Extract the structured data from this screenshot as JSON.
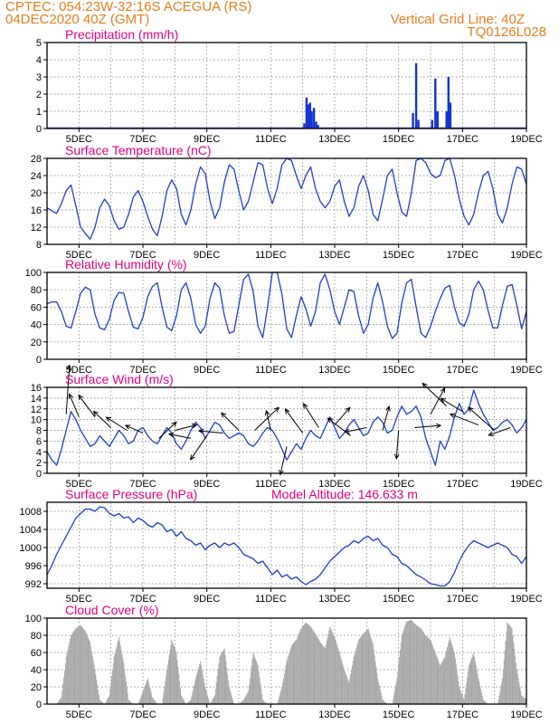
{
  "header": {
    "line1": "CPTEC:  054:23W-32:16S  ACEGUA (RS)",
    "line2": "04DEC2020 40Z (GMT)",
    "grid_note": "Vertical Grid Line: 40Z",
    "code": "TQ0126L028"
  },
  "colors": {
    "header": "#e87d1e",
    "title": "#e6007e",
    "line": "#1f3fd1",
    "bars": "#1432d6",
    "cloud": "#a6a6a6"
  },
  "x_axis": {
    "start_day": 4,
    "end_day": 19,
    "tick_days": [
      5,
      7,
      9,
      11,
      13,
      15,
      17,
      19
    ],
    "tick_labels": [
      "5DEC",
      "7DEC",
      "9DEC",
      "11DEC",
      "13DEC",
      "15DEC",
      "17DEC",
      "19DEC"
    ]
  },
  "chart_data": [
    {
      "name": "precipitation",
      "type": "bar",
      "title": "Precipitation (mm/h)",
      "ylim": [
        0,
        5
      ],
      "yticks": [
        0,
        1,
        2,
        3,
        4,
        5
      ],
      "grid": true,
      "x": [
        12.05,
        12.12,
        12.17,
        12.23,
        12.28,
        12.35,
        12.42,
        12.48,
        15.45,
        15.55,
        15.62,
        16.05,
        16.15,
        16.22,
        16.5,
        16.56,
        16.62
      ],
      "values": [
        0.3,
        1.8,
        1.4,
        1.5,
        1.0,
        1.2,
        0.4,
        0.2,
        0.9,
        3.8,
        0.5,
        0.5,
        2.9,
        1.0,
        1.0,
        3.0,
        1.5
      ]
    },
    {
      "name": "temperature",
      "type": "line",
      "title": "Surface Temperature (nC)",
      "ylim": [
        8,
        28
      ],
      "yticks": [
        8,
        12,
        16,
        20,
        24,
        28
      ],
      "grid": true,
      "x": [
        4.0,
        4.15,
        4.3,
        4.45,
        4.6,
        4.75,
        4.9,
        5.05,
        5.2,
        5.35,
        5.5,
        5.65,
        5.8,
        5.95,
        6.1,
        6.25,
        6.4,
        6.55,
        6.7,
        6.85,
        7.0,
        7.15,
        7.3,
        7.45,
        7.6,
        7.75,
        7.9,
        8.05,
        8.2,
        8.35,
        8.5,
        8.65,
        8.8,
        8.95,
        9.1,
        9.25,
        9.4,
        9.55,
        9.7,
        9.85,
        10.0,
        10.15,
        10.3,
        10.45,
        10.6,
        10.75,
        10.9,
        11.05,
        11.2,
        11.35,
        11.5,
        11.65,
        11.8,
        11.95,
        12.1,
        12.25,
        12.4,
        12.55,
        12.7,
        12.85,
        13.0,
        13.15,
        13.3,
        13.45,
        13.6,
        13.75,
        13.9,
        14.05,
        14.2,
        14.35,
        14.5,
        14.65,
        14.8,
        14.95,
        15.1,
        15.25,
        15.4,
        15.55,
        15.7,
        15.85,
        16.0,
        16.15,
        16.3,
        16.45,
        16.6,
        16.75,
        16.9,
        17.05,
        17.2,
        17.35,
        17.5,
        17.65,
        17.8,
        17.95,
        18.1,
        18.25,
        18.4,
        18.55,
        18.7,
        18.85,
        19.0
      ],
      "values": [
        16.5,
        15.8,
        15.2,
        17.5,
        20.5,
        21.8,
        17.0,
        12.0,
        10.5,
        9.2,
        12.0,
        16.5,
        18.5,
        17.0,
        13.5,
        11.5,
        12.0,
        15.0,
        19.0,
        20.5,
        18.0,
        14.5,
        11.5,
        10.0,
        14.5,
        20.5,
        23.0,
        21.0,
        15.0,
        12.5,
        16.0,
        22.0,
        26.0,
        24.5,
        18.0,
        14.0,
        16.5,
        22.5,
        26.5,
        25.5,
        20.5,
        16.0,
        18.0,
        22.5,
        27.0,
        26.5,
        21.0,
        17.5,
        21.0,
        26.5,
        28.0,
        27.5,
        24.0,
        21.0,
        24.0,
        26.0,
        21.0,
        18.0,
        16.5,
        18.0,
        21.5,
        23.0,
        18.0,
        14.5,
        16.5,
        21.5,
        24.0,
        20.5,
        15.0,
        13.5,
        18.5,
        24.0,
        25.5,
        20.0,
        15.5,
        14.5,
        20.0,
        27.5,
        28.0,
        27.0,
        24.5,
        23.5,
        24.0,
        27.5,
        28.0,
        24.0,
        18.5,
        14.5,
        12.5,
        15.0,
        20.0,
        24.0,
        25.0,
        21.0,
        15.0,
        13.0,
        16.5,
        22.0,
        26.0,
        25.5,
        22.0
      ]
    },
    {
      "name": "humidity",
      "type": "line",
      "title": "Relative Humidity (%)",
      "ylim": [
        0,
        100
      ],
      "yticks": [
        0,
        20,
        40,
        60,
        80,
        100
      ],
      "grid": true,
      "x": [
        4.0,
        4.15,
        4.3,
        4.45,
        4.6,
        4.75,
        4.9,
        5.05,
        5.2,
        5.35,
        5.5,
        5.65,
        5.8,
        5.95,
        6.1,
        6.25,
        6.4,
        6.55,
        6.7,
        6.85,
        7.0,
        7.15,
        7.3,
        7.45,
        7.6,
        7.75,
        7.9,
        8.05,
        8.2,
        8.35,
        8.5,
        8.65,
        8.8,
        8.95,
        9.1,
        9.25,
        9.4,
        9.55,
        9.7,
        9.85,
        10.0,
        10.15,
        10.3,
        10.45,
        10.6,
        10.75,
        10.9,
        11.05,
        11.2,
        11.35,
        11.5,
        11.65,
        11.8,
        11.95,
        12.1,
        12.25,
        12.4,
        12.55,
        12.7,
        12.85,
        13.0,
        13.15,
        13.3,
        13.45,
        13.6,
        13.75,
        13.9,
        14.05,
        14.2,
        14.35,
        14.5,
        14.65,
        14.8,
        14.95,
        15.1,
        15.25,
        15.4,
        15.55,
        15.7,
        15.85,
        16.0,
        16.15,
        16.3,
        16.45,
        16.6,
        16.75,
        16.9,
        17.05,
        17.2,
        17.35,
        17.5,
        17.65,
        17.8,
        17.95,
        18.1,
        18.25,
        18.4,
        18.55,
        18.7,
        18.85,
        19.0
      ],
      "values": [
        64,
        66,
        66,
        55,
        38,
        36,
        55,
        76,
        83,
        80,
        52,
        36,
        34,
        46,
        68,
        77,
        76,
        55,
        37,
        35,
        48,
        72,
        84,
        88,
        60,
        37,
        33,
        50,
        80,
        88,
        70,
        40,
        30,
        38,
        70,
        88,
        82,
        50,
        30,
        32,
        62,
        92,
        98,
        78,
        38,
        25,
        60,
        100,
        100,
        75,
        35,
        25,
        50,
        72,
        58,
        38,
        55,
        88,
        98,
        80,
        55,
        40,
        60,
        80,
        78,
        50,
        30,
        40,
        70,
        88,
        66,
        38,
        24,
        30,
        65,
        88,
        92,
        60,
        30,
        25,
        38,
        55,
        70,
        82,
        85,
        60,
        42,
        38,
        52,
        80,
        90,
        80,
        56,
        36,
        36,
        62,
        84,
        86,
        62,
        35,
        55
      ]
    },
    {
      "name": "wind",
      "type": "line",
      "title": "Surface Wind (m/s)",
      "ylim": [
        0,
        16
      ],
      "yticks": [
        0,
        2,
        4,
        6,
        8,
        10,
        12,
        14,
        16
      ],
      "grid": true,
      "x": [
        4.0,
        4.15,
        4.3,
        4.45,
        4.6,
        4.75,
        4.9,
        5.05,
        5.2,
        5.35,
        5.5,
        5.65,
        5.8,
        5.95,
        6.1,
        6.25,
        6.4,
        6.55,
        6.7,
        6.85,
        7.0,
        7.15,
        7.3,
        7.45,
        7.6,
        7.75,
        7.9,
        8.05,
        8.2,
        8.35,
        8.5,
        8.65,
        8.8,
        8.95,
        9.1,
        9.25,
        9.4,
        9.55,
        9.7,
        9.85,
        10.0,
        10.15,
        10.3,
        10.45,
        10.6,
        10.75,
        10.9,
        11.05,
        11.2,
        11.35,
        11.5,
        11.65,
        11.8,
        11.95,
        12.1,
        12.25,
        12.4,
        12.55,
        12.7,
        12.85,
        13.0,
        13.15,
        13.3,
        13.45,
        13.6,
        13.75,
        13.9,
        14.05,
        14.2,
        14.35,
        14.5,
        14.65,
        14.8,
        14.95,
        15.1,
        15.25,
        15.4,
        15.55,
        15.7,
        15.85,
        16.0,
        16.15,
        16.3,
        16.45,
        16.6,
        16.75,
        16.9,
        17.05,
        17.2,
        17.35,
        17.5,
        17.65,
        17.8,
        17.95,
        18.1,
        18.25,
        18.4,
        18.55,
        18.7,
        18.85,
        19.0
      ],
      "values": [
        4.0,
        2.5,
        1.5,
        4.5,
        8.0,
        11.5,
        10.0,
        8.0,
        6.5,
        5.0,
        5.5,
        7.0,
        6.0,
        5.0,
        6.5,
        8.0,
        7.0,
        5.5,
        6.0,
        8.0,
        8.5,
        7.0,
        6.0,
        5.5,
        7.0,
        8.5,
        7.5,
        5.5,
        4.5,
        6.0,
        8.0,
        9.5,
        8.5,
        6.5,
        8.0,
        9.5,
        9.0,
        7.5,
        6.5,
        7.0,
        7.5,
        7.0,
        5.5,
        5.0,
        6.0,
        7.5,
        8.5,
        8.0,
        6.5,
        4.5,
        2.5,
        4.0,
        5.5,
        4.5,
        6.5,
        8.0,
        7.0,
        6.5,
        8.5,
        10.5,
        8.5,
        6.5,
        7.5,
        9.0,
        10.0,
        8.5,
        7.0,
        7.5,
        9.5,
        10.5,
        9.5,
        7.5,
        8.0,
        10.5,
        12.5,
        11.0,
        11.5,
        12.5,
        10.5,
        6.5,
        4.0,
        1.5,
        6.0,
        4.5,
        7.0,
        10.5,
        13.0,
        11.0,
        12.0,
        15.5,
        13.0,
        11.0,
        9.5,
        8.0,
        8.5,
        9.5,
        10.0,
        9.0,
        7.5,
        8.5,
        10.0
      ],
      "vectors": [
        {
          "x": 4.6,
          "y": 11.0,
          "u": 0.3,
          "v": 4.5
        },
        {
          "x": 5.0,
          "y": 10.5,
          "u": -0.9,
          "v": 2.1
        },
        {
          "x": 5.5,
          "y": 10.5,
          "u": -1.5,
          "v": 2.0
        },
        {
          "x": 6.0,
          "y": 8.5,
          "u": -1.6,
          "v": 1.5
        },
        {
          "x": 6.5,
          "y": 8.0,
          "u": -1.9,
          "v": 1.2
        },
        {
          "x": 7.0,
          "y": 7.5,
          "u": -1.6,
          "v": 0.7
        },
        {
          "x": 7.5,
          "y": 6.5,
          "u": 1.6,
          "v": 1.5
        },
        {
          "x": 8.0,
          "y": 8.0,
          "u": 2.0,
          "v": 0.5
        },
        {
          "x": 8.5,
          "y": 6.5,
          "u": -2.0,
          "v": 0.4
        },
        {
          "x": 9.0,
          "y": 7.0,
          "u": -1.5,
          "v": -2.2
        },
        {
          "x": 9.5,
          "y": 7.5,
          "u": -2.2,
          "v": 0.2
        },
        {
          "x": 10.0,
          "y": 8.0,
          "u": -1.6,
          "v": 1.6
        },
        {
          "x": 10.5,
          "y": 8.0,
          "u": 2.2,
          "v": 2.1
        },
        {
          "x": 11.0,
          "y": 8.0,
          "u": -0.4,
          "v": 1.8
        },
        {
          "x": 11.5,
          "y": 5.0,
          "u": -0.6,
          "v": -2.6
        },
        {
          "x": 12.0,
          "y": 7.5,
          "u": -1.6,
          "v": 2.2
        },
        {
          "x": 12.5,
          "y": 8.5,
          "u": -1.4,
          "v": 2.2
        },
        {
          "x": 13.0,
          "y": 9.0,
          "u": 1.4,
          "v": 1.6
        },
        {
          "x": 13.5,
          "y": 7.0,
          "u": -2.1,
          "v": 1.6
        },
        {
          "x": 14.0,
          "y": 8.5,
          "u": -2.0,
          "v": -0.4
        },
        {
          "x": 14.5,
          "y": 8.0,
          "u": 0.6,
          "v": 2.2
        },
        {
          "x": 15.0,
          "y": 8.0,
          "u": -0.2,
          "v": -2.6
        },
        {
          "x": 15.5,
          "y": 8.5,
          "u": 2.4,
          "v": 0.2
        },
        {
          "x": 16.0,
          "y": 11.0,
          "u": 1.3,
          "v": 2.4
        },
        {
          "x": 16.5,
          "y": 12.5,
          "u": -2.2,
          "v": 2.1
        },
        {
          "x": 17.0,
          "y": 11.5,
          "u": -2.0,
          "v": 1.2
        },
        {
          "x": 17.5,
          "y": 9.0,
          "u": -2.6,
          "v": 1.0
        },
        {
          "x": 18.0,
          "y": 8.0,
          "u": -2.4,
          "v": 2.1
        },
        {
          "x": 18.5,
          "y": 8.5,
          "u": -2.0,
          "v": -0.7
        }
      ]
    },
    {
      "name": "pressure",
      "type": "line",
      "title": "Surface Pressure (hPa)",
      "subtitle": "Model Altitude: 146.633 m",
      "ylim": [
        991,
        1010
      ],
      "yticks": [
        992,
        996,
        1000,
        1004,
        1008
      ],
      "grid": true,
      "x": [
        4.0,
        4.15,
        4.3,
        4.45,
        4.6,
        4.75,
        4.9,
        5.05,
        5.2,
        5.35,
        5.5,
        5.65,
        5.8,
        5.95,
        6.1,
        6.25,
        6.4,
        6.55,
        6.7,
        6.85,
        7.0,
        7.15,
        7.3,
        7.45,
        7.6,
        7.75,
        7.9,
        8.05,
        8.2,
        8.35,
        8.5,
        8.65,
        8.8,
        8.95,
        9.1,
        9.25,
        9.4,
        9.55,
        9.7,
        9.85,
        10.0,
        10.15,
        10.3,
        10.45,
        10.6,
        10.75,
        10.9,
        11.05,
        11.2,
        11.35,
        11.5,
        11.65,
        11.8,
        11.95,
        12.1,
        12.25,
        12.4,
        12.55,
        12.7,
        12.85,
        13.0,
        13.15,
        13.3,
        13.45,
        13.6,
        13.75,
        13.9,
        14.05,
        14.2,
        14.35,
        14.5,
        14.65,
        14.8,
        14.95,
        15.1,
        15.25,
        15.4,
        15.55,
        15.7,
        15.85,
        16.0,
        16.15,
        16.3,
        16.45,
        16.6,
        16.75,
        16.9,
        17.05,
        17.2,
        17.35,
        17.5,
        17.65,
        17.8,
        17.95,
        18.1,
        18.25,
        18.4,
        18.55,
        18.7,
        18.85,
        19.0
      ],
      "values": [
        994.0,
        996.0,
        998.5,
        1000.5,
        1002.5,
        1004.5,
        1006.5,
        1007.5,
        1008.5,
        1008.5,
        1008.0,
        1009.0,
        1008.8,
        1007.5,
        1007.0,
        1007.5,
        1006.5,
        1006.8,
        1005.5,
        1006.5,
        1006.0,
        1005.0,
        1004.5,
        1005.5,
        1005.0,
        1003.5,
        1004.0,
        1002.5,
        1003.5,
        1002.0,
        1001.5,
        1000.5,
        1001.0,
        999.5,
        1000.5,
        1001.0,
        1000.0,
        1001.0,
        1000.5,
        1001.0,
        1000.0,
        998.5,
        998.0,
        997.5,
        996.5,
        997.0,
        995.5,
        994.0,
        995.0,
        993.5,
        994.0,
        993.0,
        993.5,
        992.5,
        991.8,
        992.5,
        993.0,
        994.0,
        995.5,
        997.0,
        998.0,
        999.0,
        1000.0,
        1000.5,
        1001.5,
        1001.0,
        1002.0,
        1002.5,
        1001.5,
        1002.0,
        1000.5,
        1000.0,
        998.5,
        998.0,
        996.5,
        996.0,
        995.0,
        994.0,
        993.5,
        992.8,
        992.0,
        991.8,
        991.5,
        991.5,
        992.5,
        994.5,
        997.0,
        999.0,
        1000.5,
        1001.5,
        1001.0,
        1000.5,
        1000.0,
        1000.5,
        1001.0,
        1000.5,
        1000.0,
        998.5,
        998.0,
        996.5,
        998.0
      ]
    },
    {
      "name": "cloud_cover",
      "type": "bar",
      "title": "Cloud Cover (%)",
      "ylim": [
        0,
        100
      ],
      "yticks": [
        0,
        20,
        40,
        60,
        80,
        100
      ],
      "grid": true,
      "x": [
        4.0,
        4.15,
        4.3,
        4.45,
        4.6,
        4.75,
        4.9,
        5.05,
        5.2,
        5.35,
        5.5,
        5.65,
        5.8,
        5.95,
        6.1,
        6.25,
        6.4,
        6.55,
        6.7,
        6.85,
        7.0,
        7.15,
        7.3,
        7.45,
        7.6,
        7.75,
        7.9,
        8.05,
        8.2,
        8.35,
        8.5,
        8.65,
        8.8,
        8.95,
        9.1,
        9.25,
        9.4,
        9.55,
        9.7,
        9.85,
        10.0,
        10.15,
        10.3,
        10.45,
        10.6,
        10.75,
        10.9,
        11.05,
        11.2,
        11.35,
        11.5,
        11.65,
        11.8,
        11.95,
        12.1,
        12.25,
        12.4,
        12.55,
        12.7,
        12.85,
        13.0,
        13.15,
        13.3,
        13.45,
        13.6,
        13.75,
        13.9,
        14.05,
        14.2,
        14.35,
        14.5,
        14.65,
        14.8,
        14.95,
        15.1,
        15.25,
        15.4,
        15.55,
        15.7,
        15.85,
        16.0,
        16.15,
        16.3,
        16.45,
        16.6,
        16.75,
        16.9,
        17.05,
        17.2,
        17.35,
        17.5,
        17.65,
        17.8,
        17.95,
        18.1,
        18.25,
        18.4,
        18.55,
        18.7,
        18.85,
        19.0
      ],
      "values": [
        0,
        0,
        0,
        8,
        55,
        80,
        88,
        92,
        85,
        72,
        40,
        5,
        0,
        10,
        55,
        78,
        48,
        5,
        0,
        0,
        15,
        30,
        8,
        0,
        0,
        40,
        75,
        60,
        10,
        0,
        5,
        30,
        50,
        20,
        0,
        10,
        55,
        65,
        20,
        0,
        0,
        5,
        15,
        60,
        45,
        5,
        0,
        0,
        0,
        20,
        50,
        68,
        75,
        88,
        95,
        90,
        82,
        72,
        65,
        90,
        78,
        60,
        40,
        25,
        55,
        75,
        82,
        88,
        70,
        30,
        5,
        0,
        0,
        30,
        80,
        96,
        98,
        92,
        88,
        80,
        75,
        60,
        45,
        55,
        78,
        60,
        20,
        5,
        45,
        60,
        30,
        5,
        0,
        0,
        0,
        30,
        95,
        88,
        40,
        10,
        5
      ]
    }
  ]
}
